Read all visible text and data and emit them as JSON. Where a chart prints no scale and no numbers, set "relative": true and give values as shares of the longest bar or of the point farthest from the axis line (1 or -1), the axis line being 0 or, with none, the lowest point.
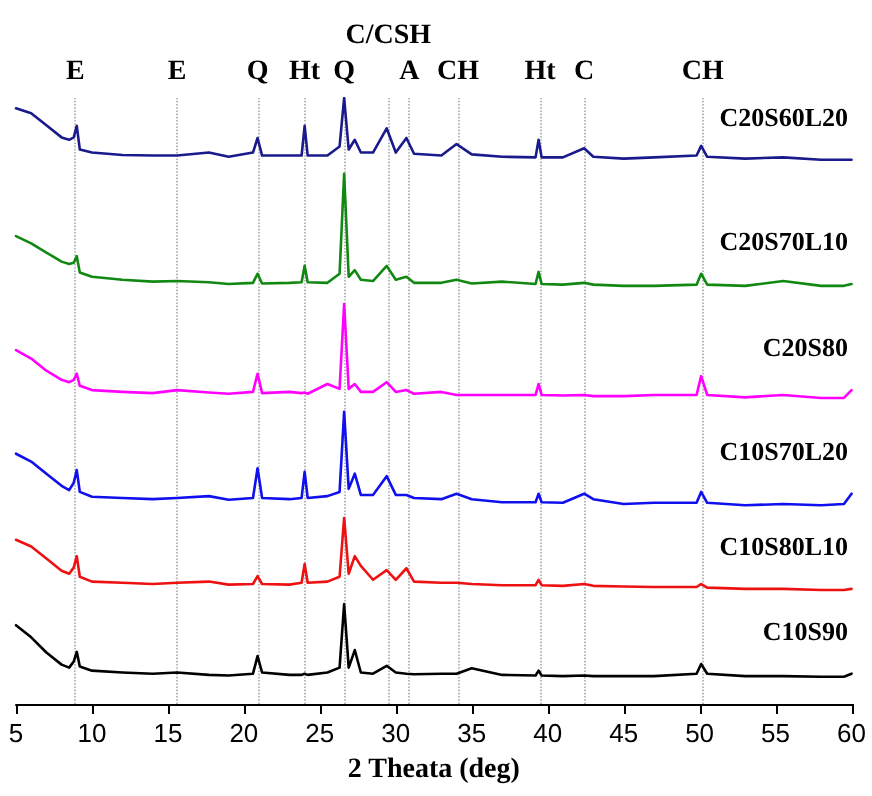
{
  "chart_data": {
    "type": "line",
    "relative": true,
    "xlabel": "2 Theata (deg)",
    "xlim": [
      5,
      60
    ],
    "xticks": [
      5,
      10,
      15,
      20,
      25,
      30,
      35,
      40,
      45,
      50,
      55,
      60
    ],
    "legend": false,
    "grid": false,
    "marker": "none",
    "line_style": "solid",
    "x": [
      5,
      6,
      7,
      8,
      8.5,
      8.8,
      9,
      9.2,
      10,
      12,
      14,
      15.6,
      17.7,
      19,
      20.6,
      20.9,
      21.2,
      23,
      23.8,
      24,
      24.2,
      25.5,
      26.3,
      26.6,
      26.9,
      27.3,
      27.7,
      28.5,
      29.4,
      30,
      30.7,
      31.2,
      33,
      34,
      35,
      37,
      39.2,
      39.4,
      39.6,
      41,
      42.4,
      43,
      45,
      47,
      49.8,
      50.1,
      50.5,
      53,
      55.5,
      58,
      59.5,
      60
    ],
    "series": [
      {
        "name": "C10S90",
        "color": "#000000",
        "values": [
          0.13,
          0.11,
          0.085,
          0.065,
          0.06,
          0.07,
          0.086,
          0.062,
          0.055,
          0.052,
          0.05,
          0.052,
          0.048,
          0.047,
          0.05,
          0.079,
          0.052,
          0.048,
          0.048,
          0.05,
          0.048,
          0.052,
          0.06,
          0.165,
          0.06,
          0.089,
          0.052,
          0.05,
          0.063,
          0.052,
          0.05,
          0.049,
          0.05,
          0.05,
          0.059,
          0.048,
          0.047,
          0.055,
          0.047,
          0.046,
          0.047,
          0.046,
          0.046,
          0.046,
          0.05,
          0.066,
          0.05,
          0.046,
          0.046,
          0.045,
          0.045,
          0.05
        ]
      },
      {
        "name": "C10S80L10",
        "color": "#ee1111",
        "values": [
          0.271,
          0.26,
          0.24,
          0.22,
          0.215,
          0.225,
          0.244,
          0.21,
          0.202,
          0.2,
          0.198,
          0.2,
          0.202,
          0.197,
          0.198,
          0.211,
          0.198,
          0.197,
          0.2,
          0.231,
          0.2,
          0.202,
          0.21,
          0.307,
          0.215,
          0.244,
          0.228,
          0.205,
          0.221,
          0.205,
          0.224,
          0.202,
          0.2,
          0.2,
          0.198,
          0.196,
          0.196,
          0.205,
          0.196,
          0.195,
          0.198,
          0.195,
          0.194,
          0.193,
          0.193,
          0.198,
          0.192,
          0.19,
          0.19,
          0.188,
          0.188,
          0.19
        ]
      },
      {
        "name": "C10S70L20",
        "color": "#1010ee",
        "values": [
          0.413,
          0.4,
          0.38,
          0.36,
          0.353,
          0.365,
          0.386,
          0.35,
          0.342,
          0.34,
          0.338,
          0.34,
          0.343,
          0.337,
          0.34,
          0.389,
          0.34,
          0.338,
          0.34,
          0.383,
          0.34,
          0.343,
          0.35,
          0.482,
          0.355,
          0.38,
          0.345,
          0.345,
          0.376,
          0.345,
          0.345,
          0.34,
          0.338,
          0.347,
          0.338,
          0.333,
          0.333,
          0.347,
          0.333,
          0.332,
          0.347,
          0.338,
          0.33,
          0.332,
          0.332,
          0.35,
          0.332,
          0.328,
          0.33,
          0.328,
          0.33,
          0.347
        ]
      },
      {
        "name": "C20S80",
        "color": "#ff00ff",
        "values": [
          0.584,
          0.57,
          0.55,
          0.535,
          0.531,
          0.535,
          0.545,
          0.525,
          0.518,
          0.515,
          0.513,
          0.518,
          0.514,
          0.512,
          0.515,
          0.545,
          0.513,
          0.515,
          0.513,
          0.514,
          0.512,
          0.528,
          0.52,
          0.66,
          0.52,
          0.528,
          0.515,
          0.515,
          0.531,
          0.515,
          0.518,
          0.512,
          0.515,
          0.51,
          0.51,
          0.51,
          0.51,
          0.528,
          0.51,
          0.509,
          0.51,
          0.508,
          0.508,
          0.51,
          0.51,
          0.541,
          0.51,
          0.506,
          0.51,
          0.505,
          0.505,
          0.518
        ]
      },
      {
        "name": "C20S70L10",
        "color": "#118811",
        "values": [
          0.772,
          0.76,
          0.745,
          0.73,
          0.726,
          0.728,
          0.739,
          0.712,
          0.705,
          0.7,
          0.697,
          0.698,
          0.696,
          0.693,
          0.695,
          0.71,
          0.694,
          0.695,
          0.696,
          0.723,
          0.696,
          0.695,
          0.71,
          0.875,
          0.705,
          0.716,
          0.7,
          0.698,
          0.723,
          0.7,
          0.705,
          0.695,
          0.695,
          0.7,
          0.694,
          0.697,
          0.693,
          0.713,
          0.693,
          0.692,
          0.695,
          0.692,
          0.69,
          0.69,
          0.692,
          0.71,
          0.692,
          0.69,
          0.698,
          0.69,
          0.69,
          0.693
        ]
      },
      {
        "name": "C20S60L20",
        "color": "#1a1a8c",
        "values": [
          0.983,
          0.975,
          0.955,
          0.935,
          0.931,
          0.935,
          0.954,
          0.915,
          0.91,
          0.906,
          0.905,
          0.905,
          0.91,
          0.903,
          0.91,
          0.934,
          0.905,
          0.905,
          0.905,
          0.954,
          0.905,
          0.905,
          0.92,
          1,
          0.915,
          0.931,
          0.91,
          0.91,
          0.95,
          0.91,
          0.934,
          0.908,
          0.905,
          0.924,
          0.907,
          0.903,
          0.902,
          0.931,
          0.902,
          0.902,
          0.917,
          0.903,
          0.9,
          0.902,
          0.905,
          0.921,
          0.903,
          0.9,
          0.902,
          0.898,
          0.898,
          0.898
        ]
      }
    ],
    "ref_lines": [
      {
        "axis": "x",
        "value": 8.9,
        "label": "E",
        "color": "#aaaaaa",
        "line_style": "dotted"
      },
      {
        "axis": "x",
        "value": 15.6,
        "label": "E",
        "color": "#aaaaaa",
        "line_style": "dotted"
      },
      {
        "axis": "x",
        "value": 20.9,
        "label": "Q",
        "color": "#aaaaaa",
        "line_style": "dotted"
      },
      {
        "axis": "x",
        "value": 24,
        "label": "Ht",
        "color": "#aaaaaa",
        "line_style": "dotted"
      },
      {
        "axis": "x",
        "value": 26.6,
        "label": "Q",
        "color": "#aaaaaa",
        "line_style": "dotted"
      },
      {
        "axis": "x",
        "value": 29.5,
        "label": "C/CSH",
        "color": "#aaaaaa",
        "line_style": "dotted"
      },
      {
        "axis": "x",
        "value": 30.9,
        "label": "A",
        "color": "#aaaaaa",
        "line_style": "dotted"
      },
      {
        "axis": "x",
        "value": 34.1,
        "label": "CH",
        "color": "#aaaaaa",
        "line_style": "dotted"
      },
      {
        "axis": "x",
        "value": 39.5,
        "label": "Ht",
        "color": "#aaaaaa",
        "line_style": "dotted"
      },
      {
        "axis": "x",
        "value": 42.4,
        "label": "C",
        "color": "#aaaaaa",
        "line_style": "dotted"
      },
      {
        "axis": "x",
        "value": 50.2,
        "label": "CH",
        "color": "#aaaaaa",
        "line_style": "dotted"
      }
    ]
  }
}
